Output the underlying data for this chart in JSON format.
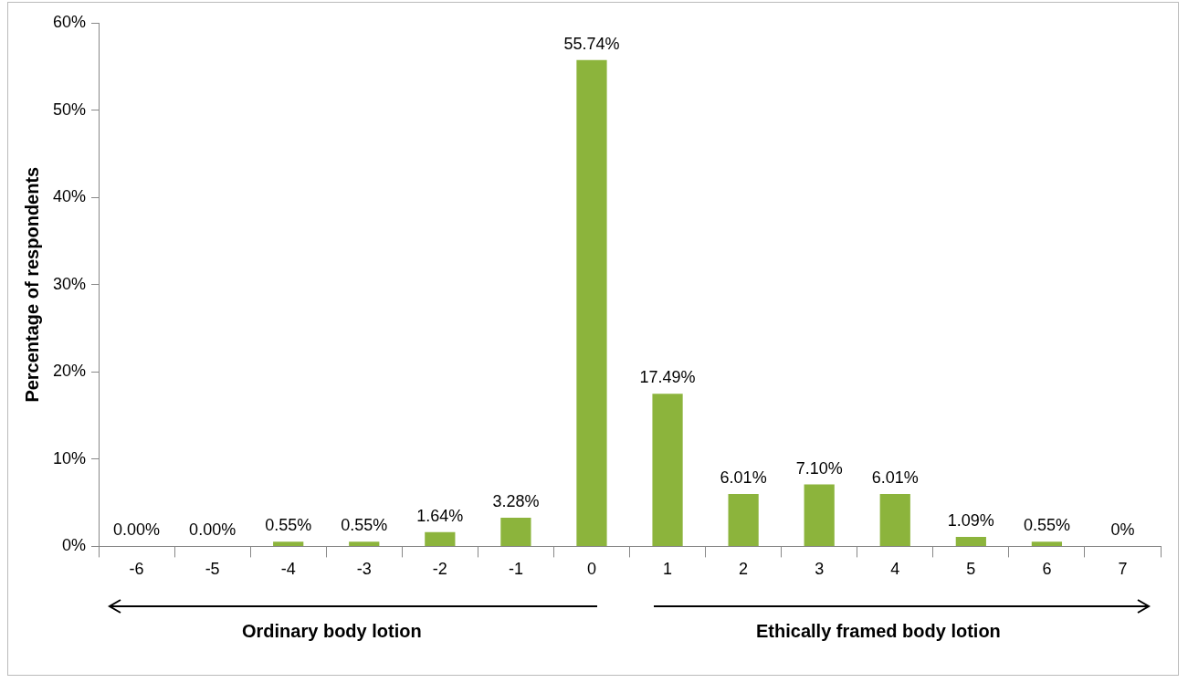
{
  "chart_data": {
    "type": "bar",
    "ylabel": "Percentage of respondents",
    "categories": [
      "-6",
      "-5",
      "-4",
      "-3",
      "-2",
      "-1",
      "0",
      "1",
      "2",
      "3",
      "4",
      "5",
      "6",
      "7"
    ],
    "values": [
      0,
      0,
      0.55,
      0.55,
      1.64,
      3.28,
      55.74,
      17.49,
      6.01,
      7.1,
      6.01,
      1.09,
      0.55,
      0
    ],
    "value_labels": [
      "0.00%",
      "0.00%",
      "0.55%",
      "0.55%",
      "1.64%",
      "3.28%",
      "55.74%",
      "17.49%",
      "6.01%",
      "7.10%",
      "6.01%",
      "1.09%",
      "0.55%",
      "0%"
    ],
    "color": "#8cb43c",
    "ylim": [
      0,
      60
    ],
    "yticks": [
      {
        "value": 0,
        "label": "0%"
      },
      {
        "value": 10,
        "label": "10%"
      },
      {
        "value": 20,
        "label": "20%"
      },
      {
        "value": 30,
        "label": "30%"
      },
      {
        "value": 40,
        "label": "40%"
      },
      {
        "value": 50,
        "label": "50%"
      },
      {
        "value": 60,
        "label": "60%"
      }
    ],
    "grid": false,
    "legend": false,
    "annotations": [
      "Ordinary body lotion",
      "Ethically framed body lotion"
    ]
  }
}
